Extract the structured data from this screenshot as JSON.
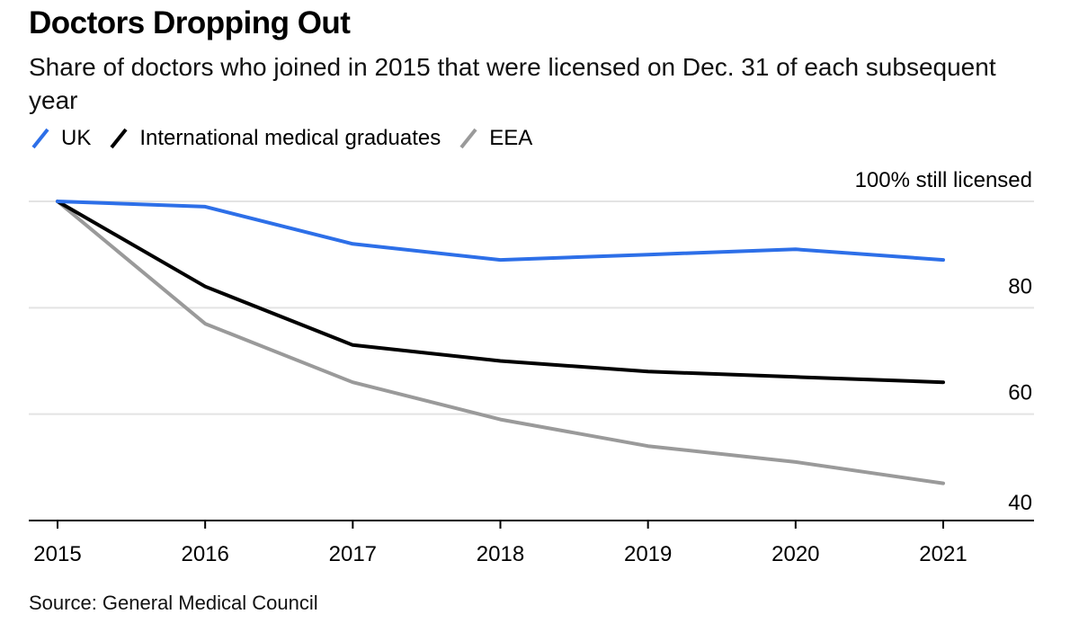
{
  "header": {
    "title": "Doctors Dropping Out",
    "subtitle": "Share of doctors who joined in 2015 that were licensed on Dec. 31 of each subsequent year"
  },
  "legend": [
    {
      "label": "UK",
      "color": "#2d6fe8"
    },
    {
      "label": "International medical graduates",
      "color": "#000000"
    },
    {
      "label": "EEA",
      "color": "#9a9a9a"
    }
  ],
  "footer": {
    "source": "Source: General Medical Council"
  },
  "chart_data": {
    "type": "line",
    "title": "Doctors Dropping Out",
    "subtitle": "Share of doctors who joined in 2015 that were licensed on Dec. 31 of each subsequent year",
    "xlabel": "",
    "ylabel": "",
    "categories": [
      "2015",
      "2016",
      "2017",
      "2018",
      "2019",
      "2020",
      "2021"
    ],
    "y_ticks": [
      {
        "value": 100,
        "label": "100% still licensed"
      },
      {
        "value": 80,
        "label": "80"
      },
      {
        "value": 60,
        "label": "60"
      },
      {
        "value": 40,
        "label": "40"
      }
    ],
    "ylim": [
      40,
      100
    ],
    "series": [
      {
        "name": "UK",
        "color": "#2d6fe8",
        "values": [
          100,
          99,
          92,
          89,
          90,
          91,
          89
        ]
      },
      {
        "name": "International medical graduates",
        "color": "#000000",
        "values": [
          100,
          84,
          73,
          70,
          68,
          67,
          66
        ]
      },
      {
        "name": "EEA",
        "color": "#9a9a9a",
        "values": [
          100,
          77,
          66,
          59,
          54,
          51,
          47
        ]
      }
    ],
    "grid": true,
    "legend_position": "top-left"
  }
}
